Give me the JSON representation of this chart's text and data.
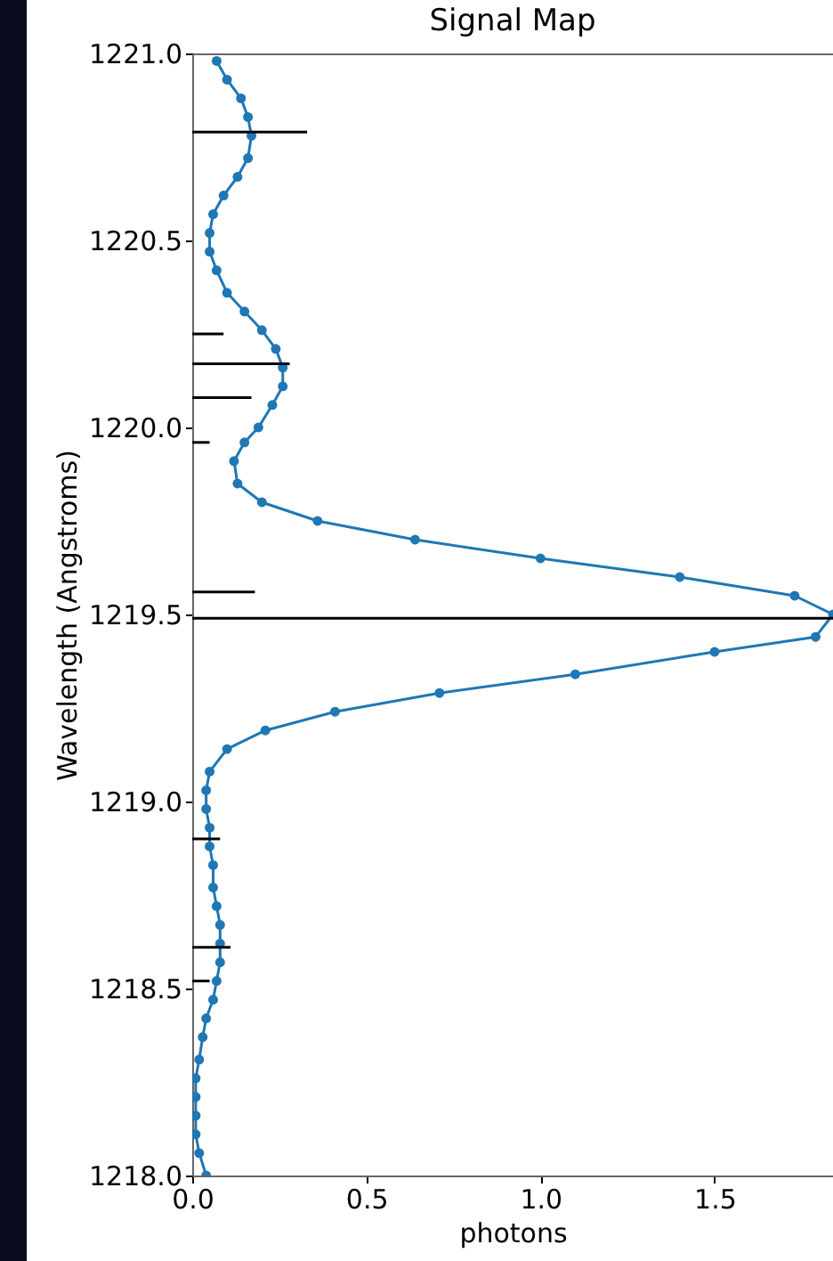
{
  "chart_data": {
    "type": "line",
    "title": "Signal Map",
    "xlabel": "photons",
    "ylabel": "Wavelength (Angstroms)",
    "orientation": "horizontal",
    "marker": "circle",
    "grid": false,
    "xlim": [
      0,
      1.84
    ],
    "xticks": [
      {
        "value": 0,
        "label": "0.0"
      },
      0.5,
      {
        "value": 1,
        "label": "1.0"
      },
      1.5
    ],
    "ylim": [
      1218,
      1221
    ],
    "yticks": [
      {
        "value": 1218,
        "label": "1218.0"
      },
      {
        "value": 1218.5,
        "label": "1218.5"
      },
      {
        "value": 1219,
        "label": "1219.0"
      },
      {
        "value": 1219.5,
        "label": "1219.5"
      },
      {
        "value": 1220,
        "label": "1220.0"
      },
      {
        "value": 1220.5,
        "label": "1220.5"
      },
      {
        "value": 1221,
        "label": "1221.0"
      }
    ],
    "series": [
      {
        "color": "#1f77b4",
        "x": [
          1218.0,
          1218.06,
          1218.11,
          1218.16,
          1218.21,
          1218.26,
          1218.31,
          1218.37,
          1218.42,
          1218.47,
          1218.52,
          1218.57,
          1218.62,
          1218.67,
          1218.72,
          1218.77,
          1218.83,
          1218.88,
          1218.93,
          1218.98,
          1219.03,
          1219.08,
          1219.14,
          1219.19,
          1219.24,
          1219.29,
          1219.34,
          1219.4,
          1219.44,
          1219.5,
          1219.55,
          1219.6,
          1219.65,
          1219.7,
          1219.75,
          1219.8,
          1219.85,
          1219.91,
          1219.96,
          1220.0,
          1220.06,
          1220.11,
          1220.16,
          1220.21,
          1220.26,
          1220.31,
          1220.36,
          1220.42,
          1220.47,
          1220.52,
          1220.57,
          1220.62,
          1220.67,
          1220.72,
          1220.78,
          1220.83,
          1220.88,
          1220.93,
          1220.98
        ],
        "values": [
          0.04,
          0.02,
          0.01,
          0.01,
          0.01,
          0.01,
          0.02,
          0.03,
          0.04,
          0.06,
          0.07,
          0.08,
          0.08,
          0.08,
          0.07,
          0.06,
          0.06,
          0.05,
          0.05,
          0.04,
          0.04,
          0.05,
          0.1,
          0.21,
          0.41,
          0.71,
          1.1,
          1.5,
          1.79,
          1.84,
          1.73,
          1.4,
          1.0,
          0.64,
          0.36,
          0.2,
          0.13,
          0.12,
          0.15,
          0.19,
          0.23,
          0.26,
          0.26,
          0.24,
          0.2,
          0.15,
          0.1,
          0.07,
          0.05,
          0.05,
          0.06,
          0.09,
          0.13,
          0.16,
          0.17,
          0.16,
          0.14,
          0.1,
          0.07
        ]
      },
      {
        "type": "bar",
        "color": "#000000",
        "x": [
          1218.52,
          1218.61,
          1218.9,
          1219.49,
          1219.56,
          1219.96,
          1220.08,
          1220.17,
          1220.25,
          1220.79
        ],
        "values": [
          0.05,
          0.11,
          0.08,
          1.84,
          0.18,
          0.05,
          0.17,
          0.28,
          0.09,
          0.33
        ]
      }
    ]
  }
}
